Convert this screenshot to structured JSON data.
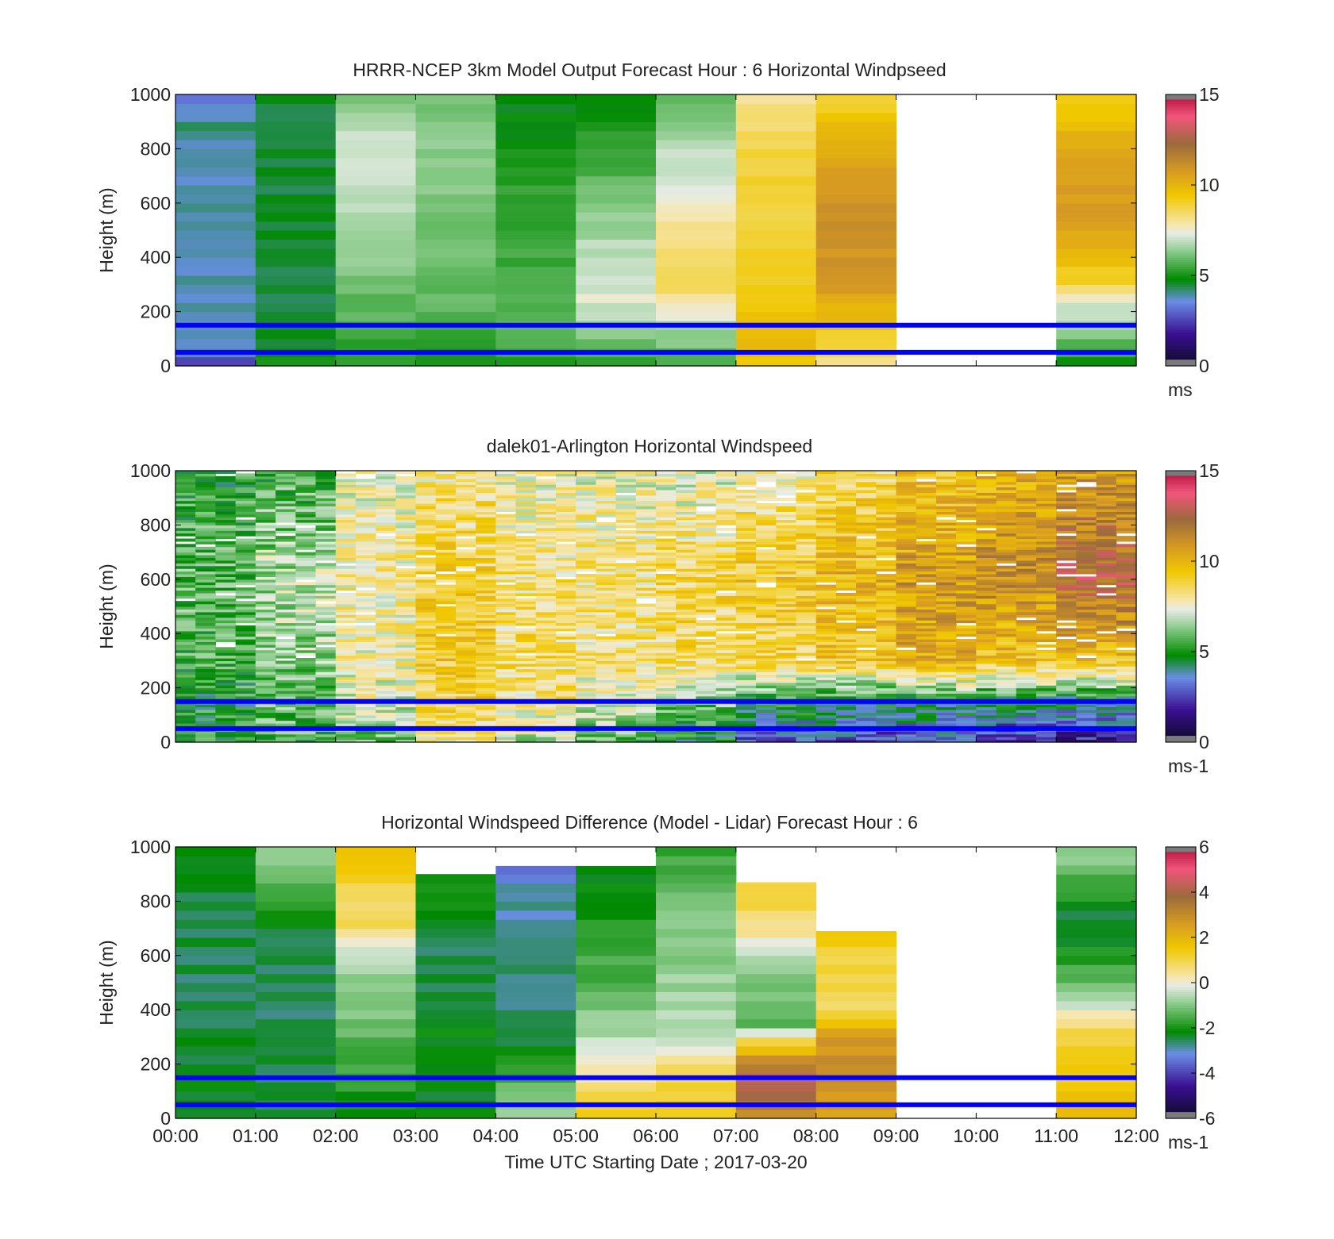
{
  "figure": {
    "xlabel": "Time UTC  Starting Date ; 2017-03-20"
  },
  "chart_data": [
    {
      "type": "heatmap",
      "title": "HRRR-NCEP 3km Model Output   Forecast Hour : 6 Horizontal Windpseed",
      "ylabel": "Height (m)",
      "xlim": [
        "00:00",
        "12:00"
      ],
      "ylim": [
        0,
        1000
      ],
      "y_ticks": [
        0,
        200,
        400,
        600,
        800,
        1000
      ],
      "colorbar": {
        "min": 0,
        "max": 15,
        "ticks": [
          0,
          5,
          10,
          15
        ],
        "unit": "ms"
      },
      "reference_lines_m": [
        50,
        150
      ],
      "hourly_profiles": [
        {
          "hour": "00:00",
          "profile": [
            [
              0,
              2.0
            ],
            [
              50,
              4.0
            ],
            [
              150,
              3.8
            ],
            [
              250,
              3.9
            ],
            [
              400,
              3.8
            ],
            [
              650,
              3.9
            ],
            [
              800,
              4.0
            ],
            [
              900,
              4.2
            ],
            [
              1000,
              2.8
            ]
          ]
        },
        {
          "hour": "01:00",
          "profile": [
            [
              0,
              5.0
            ],
            [
              150,
              4.5
            ],
            [
              1000,
              4.6
            ]
          ]
        },
        {
          "hour": "02:00",
          "profile": [
            [
              0,
              5.0
            ],
            [
              150,
              5.8
            ],
            [
              300,
              6.0
            ],
            [
              500,
              6.8
            ],
            [
              800,
              7.2
            ],
            [
              1000,
              6.0
            ]
          ]
        },
        {
          "hour": "03:00",
          "profile": [
            [
              0,
              5.0
            ],
            [
              150,
              5.5
            ],
            [
              300,
              6.0
            ],
            [
              800,
              6.4
            ],
            [
              1000,
              6.0
            ]
          ]
        },
        {
          "hour": "04:00",
          "profile": [
            [
              0,
              5.2
            ],
            [
              150,
              5.8
            ],
            [
              400,
              5.5
            ],
            [
              700,
              5.2
            ],
            [
              900,
              4.8
            ],
            [
              1000,
              4.7
            ]
          ]
        },
        {
          "hour": "05:00",
          "profile": [
            [
              0,
              5.3
            ],
            [
              150,
              6.5
            ],
            [
              250,
              7.3
            ],
            [
              450,
              6.8
            ],
            [
              700,
              5.8
            ],
            [
              1000,
              4.8
            ]
          ]
        },
        {
          "hour": "06:00",
          "profile": [
            [
              0,
              5.5
            ],
            [
              150,
              6.8
            ],
            [
              300,
              8.8
            ],
            [
              500,
              8.0
            ],
            [
              550,
              7.8
            ],
            [
              800,
              6.8
            ],
            [
              1000,
              5.8
            ]
          ]
        },
        {
          "hour": "07:00",
          "profile": [
            [
              0,
              9.5
            ],
            [
              150,
              9.8
            ],
            [
              250,
              9.2
            ],
            [
              500,
              9.0
            ],
            [
              800,
              8.8
            ],
            [
              1000,
              8.0
            ]
          ]
        },
        {
          "hour": "08:00",
          "profile": [
            [
              0,
              8.0
            ],
            [
              150,
              9.5
            ],
            [
              300,
              10.8
            ],
            [
              500,
              11.2
            ],
            [
              700,
              10.8
            ],
            [
              850,
              10.0
            ],
            [
              1000,
              9.0
            ]
          ]
        },
        {
          "hour": "09:00",
          "profile": []
        },
        {
          "hour": "10:00",
          "profile": []
        },
        {
          "hour": "11:00",
          "profile": [
            [
              0,
              5.0
            ],
            [
              150,
              6.5
            ],
            [
              250,
              7.5
            ],
            [
              300,
              9.0
            ],
            [
              500,
              10.5
            ],
            [
              700,
              10.8
            ],
            [
              900,
              9.8
            ],
            [
              1000,
              9.2
            ]
          ]
        }
      ]
    },
    {
      "type": "heatmap",
      "title": "dalek01-Arlington  Horizontal Windspeed",
      "ylabel": "Height (m)",
      "xlim": [
        "00:00",
        "12:00"
      ],
      "ylim": [
        0,
        1000
      ],
      "y_ticks": [
        0,
        200,
        400,
        600,
        800,
        1000
      ],
      "colorbar": {
        "min": 0,
        "max": 15,
        "ticks": [
          0,
          5,
          10,
          15
        ],
        "unit": "ms-1"
      },
      "reference_lines_m": [
        50,
        150
      ],
      "profile_interval_minutes": 15,
      "hourly_profiles": [
        {
          "hour": "00:00",
          "profile": [
            [
              0,
              5.0
            ],
            [
              150,
              5.0
            ],
            [
              300,
              5.5
            ],
            [
              600,
              5.8
            ],
            [
              1000,
              5.2
            ]
          ]
        },
        {
          "hour": "01:00",
          "profile": [
            [
              0,
              5.5
            ],
            [
              150,
              6.0
            ],
            [
              300,
              6.3
            ],
            [
              600,
              6.8
            ],
            [
              1000,
              5.5
            ]
          ]
        },
        {
          "hour": "02:00",
          "profile": [
            [
              0,
              6.0
            ],
            [
              150,
              7.2
            ],
            [
              300,
              7.8
            ],
            [
              600,
              8.0
            ],
            [
              1000,
              7.5
            ]
          ]
        },
        {
          "hour": "03:00",
          "profile": [
            [
              0,
              7.8
            ],
            [
              150,
              9.0
            ],
            [
              300,
              9.2
            ],
            [
              600,
              9.0
            ],
            [
              1000,
              8.2
            ]
          ]
        },
        {
          "hour": "04:00",
          "profile": [
            [
              0,
              6.5
            ],
            [
              150,
              8.2
            ],
            [
              300,
              8.5
            ],
            [
              600,
              8.4
            ],
            [
              1000,
              7.6
            ]
          ]
        },
        {
          "hour": "05:00",
          "profile": [
            [
              0,
              5.5
            ],
            [
              150,
              7.4
            ],
            [
              300,
              8.2
            ],
            [
              600,
              8.3
            ],
            [
              1000,
              7.4
            ]
          ]
        },
        {
          "hour": "06:00",
          "profile": [
            [
              0,
              4.5
            ],
            [
              150,
              6.2
            ],
            [
              300,
              8.6
            ],
            [
              600,
              8.8
            ],
            [
              1000,
              7.2
            ]
          ]
        },
        {
          "hour": "07:00",
          "profile": [
            [
              0,
              2.8
            ],
            [
              150,
              5.0
            ],
            [
              300,
              8.8
            ],
            [
              600,
              9.4
            ],
            [
              1000,
              7.8
            ]
          ]
        },
        {
          "hour": "08:00",
          "profile": [
            [
              0,
              2.6
            ],
            [
              150,
              4.6
            ],
            [
              300,
              9.4
            ],
            [
              600,
              10.0
            ],
            [
              1000,
              8.6
            ]
          ]
        },
        {
          "hour": "09:00",
          "profile": [
            [
              0,
              3.0
            ],
            [
              150,
              4.6
            ],
            [
              300,
              10.2
            ],
            [
              600,
              10.8
            ],
            [
              1000,
              9.4
            ]
          ]
        },
        {
          "hour": "10:00",
          "profile": [
            [
              0,
              2.2
            ],
            [
              150,
              4.4
            ],
            [
              300,
              9.6
            ],
            [
              600,
              11.2
            ],
            [
              1000,
              10.0
            ]
          ]
        },
        {
          "hour": "11:00",
          "profile": [
            [
              0,
              1.6
            ],
            [
              150,
              4.4
            ],
            [
              300,
              9.6
            ],
            [
              600,
              12.6
            ],
            [
              1000,
              10.8
            ]
          ]
        }
      ]
    },
    {
      "type": "heatmap",
      "title": "Horizontal Windspeed Difference (Model - Lidar) Forecast Hour : 6",
      "ylabel": "Height (m)",
      "xlim": [
        "00:00",
        "12:00"
      ],
      "ylim": [
        0,
        1000
      ],
      "y_ticks": [
        0,
        200,
        400,
        600,
        800,
        1000
      ],
      "colorbar": {
        "min": -6,
        "max": 6,
        "ticks": [
          -6,
          -4,
          -2,
          0,
          2,
          4,
          6
        ],
        "unit": "ms-1"
      },
      "reference_lines_m": [
        50,
        150
      ],
      "hourly_profiles": [
        {
          "hour": "00:00",
          "top_m": 1000,
          "profile": [
            [
              0,
              -2.2
            ],
            [
              500,
              -2.5
            ],
            [
              1000,
              -2.3
            ]
          ]
        },
        {
          "hour": "01:00",
          "top_m": 1000,
          "profile": [
            [
              0,
              -2.4
            ],
            [
              400,
              -2.6
            ],
            [
              700,
              -2.3
            ],
            [
              800,
              -1.7
            ],
            [
              900,
              -1.0
            ],
            [
              1000,
              -0.9
            ]
          ]
        },
        {
          "hour": "02:00",
          "top_m": 1000,
          "profile": [
            [
              0,
              -2.2
            ],
            [
              200,
              -1.6
            ],
            [
              400,
              -1.0
            ],
            [
              600,
              -0.6
            ],
            [
              700,
              0.8
            ],
            [
              900,
              1.2
            ],
            [
              1000,
              2.0
            ]
          ]
        },
        {
          "hour": "03:00",
          "top_m": 900,
          "profile": [
            [
              0,
              -2.3
            ],
            [
              300,
              -2.2
            ],
            [
              600,
              -2.5
            ],
            [
              900,
              -1.8
            ]
          ]
        },
        {
          "hour": "04:00",
          "top_m": 930,
          "profile": [
            [
              0,
              -0.5
            ],
            [
              150,
              -1.5
            ],
            [
              300,
              -2.6
            ],
            [
              650,
              -2.8
            ],
            [
              850,
              -2.9
            ],
            [
              930,
              -3.5
            ]
          ]
        },
        {
          "hour": "05:00",
          "top_m": 930,
          "profile": [
            [
              0,
              1.5
            ],
            [
              150,
              0.4
            ],
            [
              300,
              -0.6
            ],
            [
              500,
              -1.4
            ],
            [
              700,
              -1.9
            ],
            [
              930,
              -2.4
            ]
          ]
        },
        {
          "hour": "06:00",
          "top_m": 1000,
          "profile": [
            [
              0,
              1.4
            ],
            [
              150,
              1.0
            ],
            [
              300,
              -0.4
            ],
            [
              600,
              -0.9
            ],
            [
              800,
              -1.2
            ],
            [
              1000,
              -1.6
            ]
          ]
        },
        {
          "hour": "07:00",
          "top_m": 870,
          "profile": [
            [
              0,
              3.0
            ],
            [
              150,
              4.4
            ],
            [
              250,
              2.0
            ],
            [
              350,
              -1.5
            ],
            [
              550,
              -0.8
            ],
            [
              700,
              0.6
            ],
            [
              870,
              1.2
            ]
          ]
        },
        {
          "hour": "08:00",
          "top_m": 690,
          "profile": [
            [
              0,
              2.4
            ],
            [
              150,
              3.0
            ],
            [
              300,
              2.6
            ],
            [
              400,
              0.7
            ],
            [
              600,
              1.2
            ],
            [
              690,
              1.6
            ]
          ]
        },
        {
          "hour": "09:00",
          "top_m": 0,
          "profile": []
        },
        {
          "hour": "10:00",
          "top_m": 0,
          "profile": []
        },
        {
          "hour": "11:00",
          "top_m": 1000,
          "profile": [
            [
              0,
              2.0
            ],
            [
              150,
              1.4
            ],
            [
              300,
              1.2
            ],
            [
              380,
              0.3
            ],
            [
              450,
              -0.8
            ],
            [
              650,
              -2.2
            ],
            [
              750,
              -2.4
            ],
            [
              1000,
              -0.6
            ]
          ]
        }
      ]
    }
  ],
  "x_axis": {
    "tick_labels": [
      "00:00",
      "01:00",
      "02:00",
      "03:00",
      "04:00",
      "05:00",
      "06:00",
      "07:00",
      "08:00",
      "09:00",
      "10:00",
      "11:00",
      "12:00"
    ]
  },
  "colors": {
    "reference_line": "#0000ff",
    "axes": "#000000",
    "colormap_stops": [
      "#7a7a7a",
      "#120c33",
      "#3a0f93",
      "#6a8ee6",
      "#008a00",
      "#86c986",
      "#e7ece6",
      "#f6e6b0",
      "#f0c800",
      "#d79a22",
      "#9a6b3c",
      "#f2557a",
      "#c0204a",
      "#7a7a7a"
    ]
  }
}
